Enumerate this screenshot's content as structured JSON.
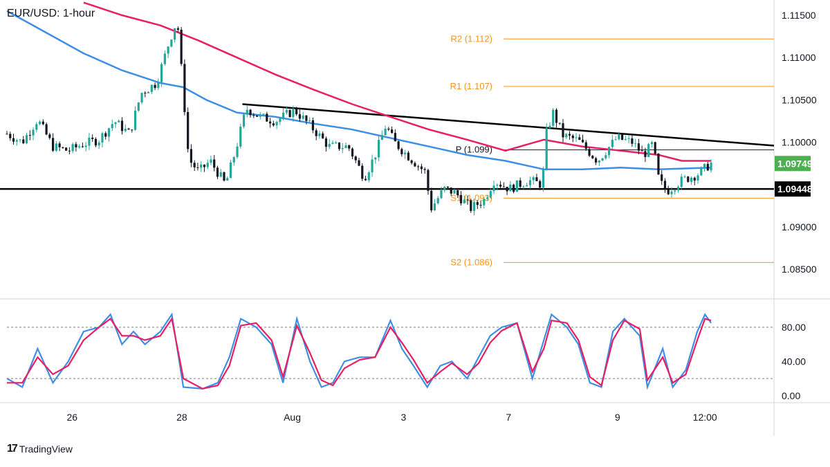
{
  "title": "EUR/USD: 1-hour",
  "brand": {
    "logo_text": "17",
    "name": "TradingView"
  },
  "colors": {
    "up": "#26a69a",
    "down": "#131722",
    "ma_fast": "#3d8fe6",
    "ma_slow": "#e91e63",
    "pivot": "#f7931a",
    "last_price_badge": "#4caf50",
    "support_badge": "#000000",
    "stoch_k": "#3d8fe6",
    "stoch_d": "#e91e63"
  },
  "chart_data": [
    {
      "type": "candlestick",
      "title": "EUR/USD: 1-hour",
      "x_ticks": [
        "26",
        "28",
        "Aug",
        "3",
        "7",
        "9",
        "12:00"
      ],
      "y_ticks": [
        "1.11500",
        "1.11000",
        "1.10500",
        "1.10000",
        "1.09000",
        "1.08500"
      ],
      "ylim": [
        1.0815,
        1.1168
      ],
      "last_price": "1.09749",
      "support_level": "1.09448",
      "levels": [
        {
          "label": "R2 (1.112)",
          "value": 1.1122
        },
        {
          "label": "R1 (1.107)",
          "value": 1.1066
        },
        {
          "label": "P (1.099)",
          "value": 1.0991
        },
        {
          "label": "S1 (1.093)",
          "value": 1.0934
        },
        {
          "label": "S2 (1.086)",
          "value": 1.0858
        }
      ],
      "trendline": {
        "from": [
          0.307,
          1.1045
        ],
        "to": [
          1.0,
          1.0996
        ]
      },
      "waypoints": [
        [
          0.0,
          1.101
        ],
        [
          0.02,
          1.1
        ],
        [
          0.04,
          1.1027
        ],
        [
          0.06,
          1.0995
        ],
        [
          0.08,
          1.099
        ],
        [
          0.1,
          1.0998
        ],
        [
          0.12,
          1.1003
        ],
        [
          0.14,
          1.1025
        ],
        [
          0.16,
          1.101
        ],
        [
          0.175,
          1.1058
        ],
        [
          0.195,
          1.107
        ],
        [
          0.212,
          1.112
        ],
        [
          0.222,
          1.1145
        ],
        [
          0.229,
          1.107
        ],
        [
          0.237,
          1.098
        ],
        [
          0.25,
          1.0965
        ],
        [
          0.265,
          1.0978
        ],
        [
          0.285,
          1.095
        ],
        [
          0.298,
          1.099
        ],
        [
          0.312,
          1.104
        ],
        [
          0.33,
          1.103
        ],
        [
          0.35,
          1.1025
        ],
        [
          0.375,
          1.1038
        ],
        [
          0.395,
          1.102
        ],
        [
          0.42,
          1.0995
        ],
        [
          0.445,
          1.0995
        ],
        [
          0.466,
          1.0958
        ],
        [
          0.48,
          1.0985
        ],
        [
          0.494,
          1.102
        ],
        [
          0.505,
          1.1
        ],
        [
          0.525,
          1.0982
        ],
        [
          0.545,
          1.0965
        ],
        [
          0.553,
          1.0922
        ],
        [
          0.57,
          1.0945
        ],
        [
          0.585,
          1.094
        ],
        [
          0.605,
          1.0922
        ],
        [
          0.622,
          1.0932
        ],
        [
          0.635,
          1.0955
        ],
        [
          0.655,
          1.0945
        ],
        [
          0.68,
          1.0955
        ],
        [
          0.698,
          1.095
        ],
        [
          0.703,
          1.101
        ],
        [
          0.712,
          1.1035
        ],
        [
          0.725,
          1.1008
        ],
        [
          0.745,
          1.1002
        ],
        [
          0.77,
          1.0978
        ],
        [
          0.795,
          1.1005
        ],
        [
          0.815,
          1.1
        ],
        [
          0.83,
          1.0985
        ],
        [
          0.842,
          1.0998
        ],
        [
          0.85,
          1.0955
        ],
        [
          0.86,
          1.0942
        ],
        [
          0.88,
          1.0955
        ],
        [
          0.9,
          1.0962
        ],
        [
          0.918,
          1.0975
        ]
      ],
      "ma_fast": [
        [
          0.0,
          1.1155
        ],
        [
          0.05,
          1.113
        ],
        [
          0.1,
          1.1105
        ],
        [
          0.15,
          1.1085
        ],
        [
          0.2,
          1.107
        ],
        [
          0.23,
          1.1065
        ],
        [
          0.26,
          1.105
        ],
        [
          0.3,
          1.1035
        ],
        [
          0.35,
          1.103
        ],
        [
          0.4,
          1.1022
        ],
        [
          0.45,
          1.1015
        ],
        [
          0.5,
          1.1005
        ],
        [
          0.55,
          1.0995
        ],
        [
          0.6,
          1.0985
        ],
        [
          0.65,
          1.0978
        ],
        [
          0.7,
          1.0968
        ],
        [
          0.75,
          1.0968
        ],
        [
          0.8,
          1.097
        ],
        [
          0.85,
          1.0968
        ],
        [
          0.918,
          1.097
        ]
      ],
      "ma_slow": [
        [
          0.1,
          1.1165
        ],
        [
          0.15,
          1.115
        ],
        [
          0.2,
          1.1138
        ],
        [
          0.25,
          1.112
        ],
        [
          0.3,
          1.11
        ],
        [
          0.35,
          1.108
        ],
        [
          0.4,
          1.1062
        ],
        [
          0.45,
          1.1045
        ],
        [
          0.5,
          1.103
        ],
        [
          0.55,
          1.1015
        ],
        [
          0.6,
          1.1003
        ],
        [
          0.65,
          1.099
        ],
        [
          0.7,
          1.1003
        ],
        [
          0.75,
          1.0995
        ],
        [
          0.8,
          1.099
        ],
        [
          0.85,
          1.0985
        ],
        [
          0.88,
          1.0978
        ],
        [
          0.918,
          1.0978
        ]
      ]
    },
    {
      "type": "line",
      "name": "stochastic",
      "y_ticks": [
        "80.00",
        "40.00",
        "0.00"
      ],
      "ylim": [
        -5,
        110
      ],
      "levels": [
        80,
        20
      ],
      "k": [
        [
          0.0,
          20
        ],
        [
          0.02,
          10
        ],
        [
          0.04,
          55
        ],
        [
          0.06,
          15
        ],
        [
          0.08,
          40
        ],
        [
          0.1,
          75
        ],
        [
          0.12,
          80
        ],
        [
          0.135,
          95
        ],
        [
          0.15,
          60
        ],
        [
          0.165,
          75
        ],
        [
          0.18,
          60
        ],
        [
          0.2,
          75
        ],
        [
          0.215,
          95
        ],
        [
          0.23,
          10
        ],
        [
          0.255,
          8
        ],
        [
          0.275,
          15
        ],
        [
          0.29,
          45
        ],
        [
          0.305,
          90
        ],
        [
          0.325,
          80
        ],
        [
          0.345,
          60
        ],
        [
          0.36,
          15
        ],
        [
          0.378,
          90
        ],
        [
          0.395,
          40
        ],
        [
          0.41,
          10
        ],
        [
          0.425,
          15
        ],
        [
          0.44,
          40
        ],
        [
          0.46,
          45
        ],
        [
          0.48,
          45
        ],
        [
          0.5,
          88
        ],
        [
          0.515,
          55
        ],
        [
          0.53,
          35
        ],
        [
          0.548,
          10
        ],
        [
          0.565,
          35
        ],
        [
          0.58,
          40
        ],
        [
          0.6,
          20
        ],
        [
          0.615,
          45
        ],
        [
          0.63,
          70
        ],
        [
          0.645,
          80
        ],
        [
          0.665,
          85
        ],
        [
          0.685,
          20
        ],
        [
          0.7,
          65
        ],
        [
          0.71,
          95
        ],
        [
          0.73,
          80
        ],
        [
          0.745,
          60
        ],
        [
          0.76,
          15
        ],
        [
          0.775,
          10
        ],
        [
          0.79,
          75
        ],
        [
          0.805,
          90
        ],
        [
          0.825,
          70
        ],
        [
          0.835,
          10
        ],
        [
          0.855,
          55
        ],
        [
          0.868,
          10
        ],
        [
          0.885,
          30
        ],
        [
          0.9,
          75
        ],
        [
          0.91,
          95
        ],
        [
          0.918,
          85
        ]
      ],
      "d": [
        [
          0.0,
          15
        ],
        [
          0.02,
          15
        ],
        [
          0.04,
          45
        ],
        [
          0.06,
          25
        ],
        [
          0.08,
          35
        ],
        [
          0.1,
          65
        ],
        [
          0.12,
          80
        ],
        [
          0.135,
          90
        ],
        [
          0.15,
          70
        ],
        [
          0.165,
          70
        ],
        [
          0.18,
          65
        ],
        [
          0.2,
          70
        ],
        [
          0.215,
          90
        ],
        [
          0.23,
          20
        ],
        [
          0.255,
          8
        ],
        [
          0.275,
          12
        ],
        [
          0.29,
          35
        ],
        [
          0.305,
          82
        ],
        [
          0.325,
          85
        ],
        [
          0.345,
          65
        ],
        [
          0.36,
          22
        ],
        [
          0.378,
          82
        ],
        [
          0.395,
          50
        ],
        [
          0.41,
          18
        ],
        [
          0.425,
          12
        ],
        [
          0.44,
          32
        ],
        [
          0.46,
          42
        ],
        [
          0.48,
          45
        ],
        [
          0.5,
          80
        ],
        [
          0.515,
          62
        ],
        [
          0.53,
          42
        ],
        [
          0.548,
          15
        ],
        [
          0.565,
          28
        ],
        [
          0.58,
          38
        ],
        [
          0.6,
          25
        ],
        [
          0.615,
          38
        ],
        [
          0.63,
          62
        ],
        [
          0.645,
          76
        ],
        [
          0.665,
          85
        ],
        [
          0.685,
          28
        ],
        [
          0.7,
          55
        ],
        [
          0.71,
          88
        ],
        [
          0.73,
          85
        ],
        [
          0.745,
          65
        ],
        [
          0.76,
          22
        ],
        [
          0.775,
          12
        ],
        [
          0.79,
          65
        ],
        [
          0.805,
          88
        ],
        [
          0.825,
          78
        ],
        [
          0.835,
          18
        ],
        [
          0.855,
          45
        ],
        [
          0.868,
          15
        ],
        [
          0.885,
          25
        ],
        [
          0.9,
          65
        ],
        [
          0.91,
          90
        ],
        [
          0.918,
          88
        ]
      ]
    }
  ]
}
